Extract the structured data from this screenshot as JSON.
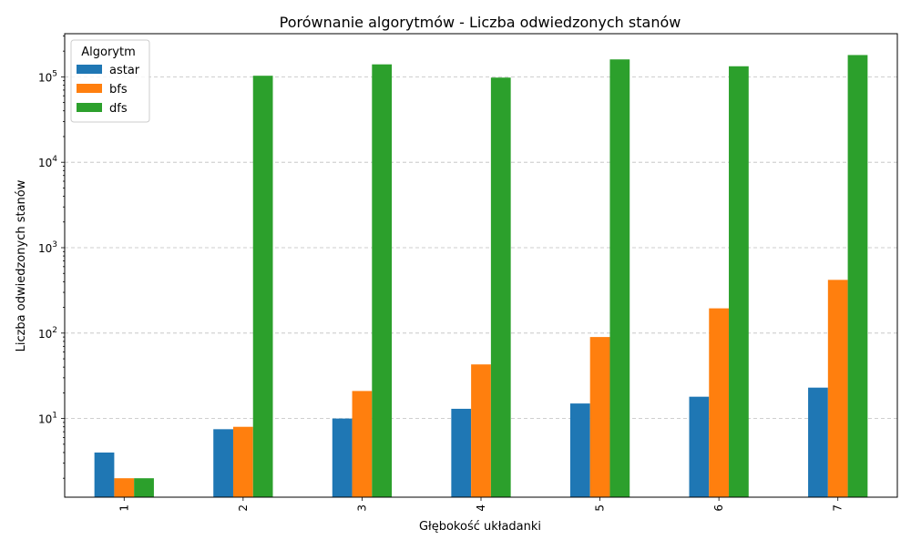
{
  "chart_data": {
    "type": "bar",
    "title": "Porównanie algorytmów - Liczba odwiedzonych stanów",
    "xlabel": "Głębokość układanki",
    "ylabel": "Liczba odwiedzonych stanów",
    "yscale": "log",
    "ylim": [
      1.2,
      320000
    ],
    "grid": "y-dashed",
    "legend_title": "Algorytm",
    "legend_position": "top-left",
    "categories": [
      "1",
      "2",
      "3",
      "4",
      "5",
      "6",
      "7"
    ],
    "series": [
      {
        "name": "astar",
        "color": "#1f77b4",
        "values": [
          4,
          7.5,
          10,
          13,
          15,
          18,
          23
        ]
      },
      {
        "name": "bfs",
        "color": "#ff7f0e",
        "values": [
          2,
          8,
          21,
          43,
          90,
          195,
          420
        ]
      },
      {
        "name": "dfs",
        "color": "#2ca02c",
        "values": [
          2,
          103000,
          140000,
          98000,
          160000,
          133000,
          180000
        ]
      }
    ],
    "yticks": [
      {
        "value": 10,
        "base": "10",
        "exp": "1"
      },
      {
        "value": 100,
        "base": "10",
        "exp": "2"
      },
      {
        "value": 1000,
        "base": "10",
        "exp": "3"
      },
      {
        "value": 10000,
        "base": "10",
        "exp": "4"
      },
      {
        "value": 100000,
        "base": "10",
        "exp": "5"
      }
    ]
  }
}
